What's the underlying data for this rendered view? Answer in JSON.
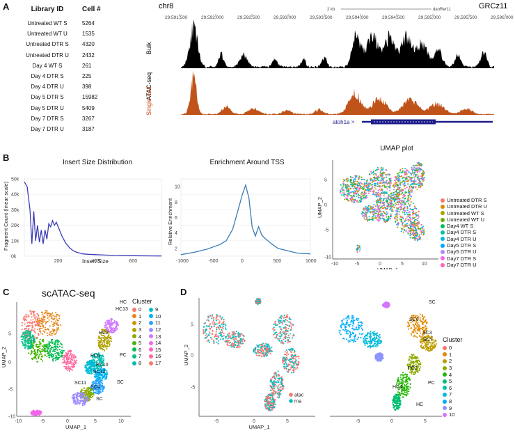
{
  "panels": {
    "a": "A",
    "b": "B",
    "c": "C",
    "d": "D"
  },
  "library_table": {
    "header_id": "Library ID",
    "header_cells": "Cell #",
    "rows": [
      {
        "id": "Untreated WT S",
        "cells": "5264"
      },
      {
        "id": "Untreated WT U",
        "cells": "1535"
      },
      {
        "id": "Untreated DTR S",
        "cells": "4320"
      },
      {
        "id": "Untreated DTR U",
        "cells": "2432"
      },
      {
        "id": "Day 4 WT S",
        "cells": "261"
      },
      {
        "id": "Day 4 DTR S",
        "cells": "225"
      },
      {
        "id": "Day 4 DTR U",
        "cells": "398"
      },
      {
        "id": "Day 5 DTR S",
        "cells": "15982"
      },
      {
        "id": "Day 5 DTR U",
        "cells": "5409"
      },
      {
        "id": "Day 7 DTR S",
        "cells": "3267"
      },
      {
        "id": "Day 7 DTR U",
        "cells": "3187"
      }
    ]
  },
  "browser": {
    "chrom": "chr8",
    "genome": "GRCz11",
    "scale_label": "2 kb",
    "assembly": "danRer11",
    "positions": [
      "29,591,500",
      "29,592,000",
      "29,592,500",
      "29,593,000",
      "29,593,500",
      "29,594,000",
      "29,594,500",
      "29,595,000",
      "29,595,500",
      "29,596,000"
    ],
    "atac_label": "ATAC-seq",
    "bulk_label": "Bulk",
    "sc_label": "Single-cell",
    "gene_label": "atoh1a >",
    "bulk_color": "#000000",
    "sc_color": "#c0531a",
    "gene_color": "#1c1c8c"
  },
  "chart_data": [
    {
      "type": "line",
      "title": "Insert Size Distribution",
      "xlabel": "Insert Size",
      "ylabel": "Fragment Count (linear scale)",
      "xlim": [
        20,
        750
      ],
      "ylim": [
        0,
        50000
      ],
      "yticks": [
        "0k",
        "10k",
        "20k",
        "30k",
        "40k",
        "50k"
      ],
      "xticks": [
        "200",
        "400",
        "600"
      ],
      "x": [
        20,
        35,
        50,
        60,
        70,
        80,
        90,
        100,
        110,
        120,
        130,
        140,
        150,
        160,
        170,
        180,
        190,
        200,
        220,
        240,
        260,
        280,
        300,
        330,
        360,
        400,
        450,
        500,
        600,
        700,
        750
      ],
      "y": [
        48000,
        45000,
        30000,
        8000,
        29000,
        10000,
        20000,
        9000,
        17000,
        8000,
        17000,
        11000,
        21000,
        19000,
        23000,
        20000,
        22000,
        19000,
        13000,
        8500,
        5500,
        3500,
        2500,
        1500,
        1200,
        1000,
        700,
        500,
        300,
        200,
        150
      ],
      "color": "#3b3bb8"
    },
    {
      "type": "line",
      "title": "Enrichment Around TSS",
      "ylabel": "Relative Enrichment",
      "xlim": [
        -1000,
        1000
      ],
      "ylim": [
        1,
        11
      ],
      "yticks": [
        "2",
        "4",
        "6",
        "8",
        "10"
      ],
      "xticks": [
        "-1000",
        "-500",
        "0",
        "500",
        "1000"
      ],
      "x": [
        -1000,
        -800,
        -600,
        -400,
        -300,
        -200,
        -100,
        -50,
        0,
        50,
        100,
        150,
        200,
        250,
        300,
        400,
        500,
        600,
        800,
        1000
      ],
      "y": [
        1.2,
        1.5,
        1.9,
        2.5,
        3.0,
        4.5,
        7.5,
        9.0,
        10.2,
        8.5,
        4.8,
        3.6,
        4.8,
        3.7,
        3.3,
        2.6,
        2.0,
        1.8,
        1.4,
        1.3
      ],
      "color": "#3a7bb8"
    }
  ],
  "umap": {
    "title": "UMAP plot",
    "xlabel": "UMAP_1",
    "ylabel": "UMAP_2",
    "xticks": [
      "-10",
      "-5",
      "0",
      "5",
      "10"
    ],
    "yticks": [
      "5",
      "0",
      "-5",
      "-10"
    ],
    "legend": [
      {
        "label": "Untreated DTR S",
        "color": "#f8766d"
      },
      {
        "label": "Untreated DTR U",
        "color": "#db8e00"
      },
      {
        "label": "Untreated WT S",
        "color": "#aea200"
      },
      {
        "label": "Untreated WT U",
        "color": "#64b200"
      },
      {
        "label": "Day4 WT S",
        "color": "#00bd5c"
      },
      {
        "label": "Day4 DTR S",
        "color": "#00c1a7"
      },
      {
        "label": "Day4 DTR U",
        "color": "#00bade"
      },
      {
        "label": "Day5 DTR S",
        "color": "#00a6ff"
      },
      {
        "label": "Day5 DTR U",
        "color": "#b385ff"
      },
      {
        "label": "Day7 DTR S",
        "color": "#ef67eb"
      },
      {
        "label": "Day7 DTR U",
        "color": "#ff63b6"
      }
    ]
  },
  "scatac": {
    "title": "scATAC-seq",
    "xlabel": "UMAP_1",
    "ylabel": "UMAP_2",
    "xticks": [
      "-10",
      "-5",
      "0",
      "5",
      "10"
    ],
    "yticks": [
      "5",
      "0",
      "-5",
      "-10"
    ],
    "legend_title": "Cluster",
    "clusters": [
      {
        "label": "0",
        "color": "#f8766d"
      },
      {
        "label": "1",
        "color": "#e7861b"
      },
      {
        "label": "2",
        "color": "#d09400"
      },
      {
        "label": "3",
        "color": "#b2a100"
      },
      {
        "label": "4",
        "color": "#89ac00"
      },
      {
        "label": "5",
        "color": "#45b500"
      },
      {
        "label": "6",
        "color": "#00bc51"
      },
      {
        "label": "7",
        "color": "#00c087"
      },
      {
        "label": "8",
        "color": "#00c0b2"
      },
      {
        "label": "9",
        "color": "#00bcd6"
      },
      {
        "label": "10",
        "color": "#00b3f2"
      },
      {
        "label": "11",
        "color": "#29a3ff"
      },
      {
        "label": "12",
        "color": "#9c8dff"
      },
      {
        "label": "13",
        "color": "#d277ff"
      },
      {
        "label": "14",
        "color": "#f166e8"
      },
      {
        "label": "15",
        "color": "#ff61c7"
      },
      {
        "label": "16",
        "color": "#ff689f"
      },
      {
        "label": "17",
        "color": "#f8766d"
      }
    ],
    "labels": [
      "HC",
      "HC13",
      "HC2",
      "PC6",
      "PC10",
      "PC",
      "SC12",
      "SC11",
      "SC4",
      "SC",
      "SC"
    ]
  },
  "integrated": {
    "xlabel": "UMAP_1",
    "ylabel": "UMAP_2",
    "xticks": [
      "-5",
      "0",
      "5"
    ],
    "yticks": [
      "5",
      "0",
      "-5"
    ],
    "legend": [
      {
        "label": "atac",
        "color": "#f8766d"
      },
      {
        "label": "rna",
        "color": "#00bfc4"
      }
    ],
    "right_xticks": [
      "-5",
      "0",
      "5"
    ],
    "right_legend_title": "Cluster",
    "right_clusters": [
      {
        "label": "0",
        "color": "#f8766d"
      },
      {
        "label": "1",
        "color": "#e18a00"
      },
      {
        "label": "2",
        "color": "#be9c00"
      },
      {
        "label": "3",
        "color": "#8cab00"
      },
      {
        "label": "4",
        "color": "#24b700"
      },
      {
        "label": "5",
        "color": "#00be70"
      },
      {
        "label": "6",
        "color": "#00c1ab"
      },
      {
        "label": "7",
        "color": "#00bbda"
      },
      {
        "label": "8",
        "color": "#00acfc"
      },
      {
        "label": "9",
        "color": "#8b93ff"
      },
      {
        "label": "10",
        "color": "#d575fe"
      }
    ],
    "labels": [
      "SC",
      "SC0",
      "SC3",
      "SC7",
      "PC2",
      "PC",
      "HC4",
      "HC"
    ]
  }
}
